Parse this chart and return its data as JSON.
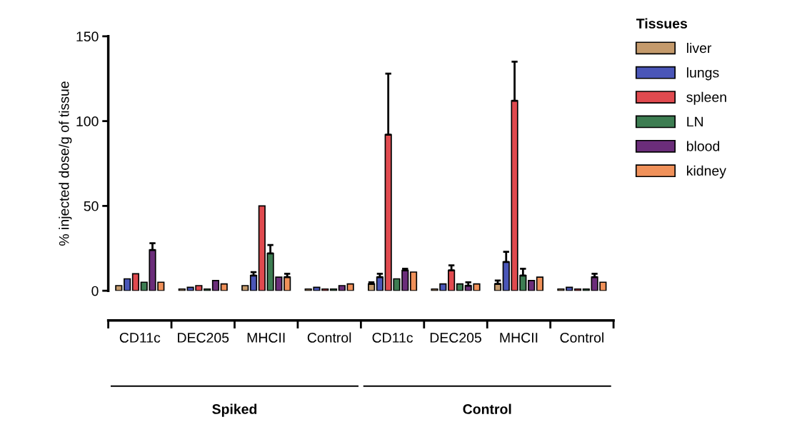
{
  "chart_data": {
    "type": "bar",
    "ylabel": "% injected dose/g of tissue",
    "categories": [
      "CD11c",
      "DEC205",
      "MHCII",
      "Control",
      "CD11c",
      "DEC205",
      "MHCII",
      "Control"
    ],
    "series": [
      {
        "name": "liver",
        "color": "#c49a6c",
        "values": [
          3,
          1,
          3,
          1,
          4,
          1,
          4,
          1
        ],
        "errors": [
          null,
          null,
          null,
          null,
          [
            4,
            5
          ],
          null,
          [
            4,
            6
          ],
          null
        ]
      },
      {
        "name": "lungs",
        "color": "#4a56b8",
        "values": [
          7,
          2,
          9,
          2,
          8,
          4,
          17,
          2
        ],
        "errors": [
          null,
          null,
          [
            9,
            11
          ],
          null,
          [
            8,
            10
          ],
          null,
          [
            17,
            23
          ],
          null
        ]
      },
      {
        "name": "spleen",
        "color": "#e04a4f",
        "values": [
          10,
          3,
          50,
          1,
          92,
          12,
          112,
          1
        ],
        "errors": [
          null,
          null,
          null,
          null,
          [
            92,
            128
          ],
          [
            12,
            15
          ],
          [
            112,
            135
          ],
          null
        ]
      },
      {
        "name": "LN",
        "color": "#3d7d52",
        "values": [
          5,
          1,
          22,
          1,
          7,
          4,
          9,
          1
        ],
        "errors": [
          null,
          null,
          [
            22,
            27
          ],
          null,
          null,
          null,
          [
            9,
            13
          ],
          null
        ]
      },
      {
        "name": "blood",
        "color": "#6b2d7a",
        "values": [
          24,
          6,
          8,
          3,
          12,
          3,
          6,
          8
        ],
        "errors": [
          [
            24,
            28
          ],
          null,
          null,
          null,
          [
            12,
            13
          ],
          [
            3,
            5
          ],
          null,
          [
            8,
            10
          ]
        ]
      },
      {
        "name": "kidney",
        "color": "#f0915a",
        "values": [
          5,
          4,
          8,
          4,
          11,
          4,
          8,
          5
        ],
        "errors": [
          null,
          null,
          [
            8,
            10
          ],
          null,
          null,
          null,
          null,
          null
        ]
      }
    ],
    "ylim": [
      0,
      150
    ],
    "yticks": [
      0,
      50,
      100,
      150
    ],
    "legend_title": "Tissues",
    "legend": "top right",
    "annotations": [
      "Spiked",
      "Control"
    ]
  }
}
